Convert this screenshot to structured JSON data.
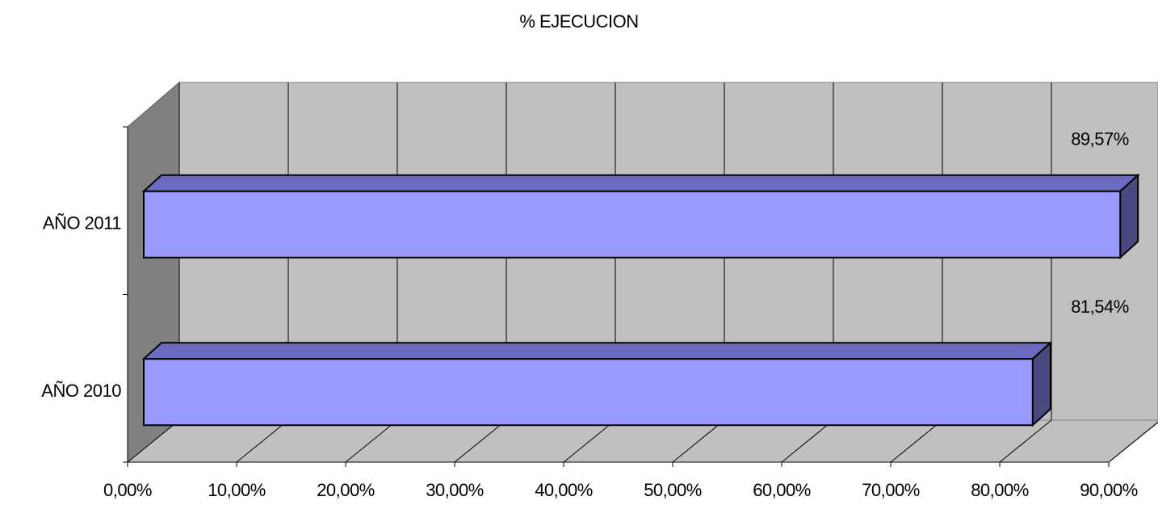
{
  "chart_data": {
    "type": "bar3d-horizontal",
    "title": "% EJECUCION",
    "categories": [
      "AÑO 2010",
      "AÑO 2011"
    ],
    "values": [
      81.54,
      89.57
    ],
    "value_labels": [
      "81,54%",
      "89,57%"
    ],
    "color": "#9999ff",
    "xlim": [
      0,
      90
    ],
    "xticks": [
      {
        "value": 0,
        "label": "0,00%"
      },
      {
        "value": 10,
        "label": "10,00%"
      },
      {
        "value": 20,
        "label": "20,00%"
      },
      {
        "value": 30,
        "label": "30,00%"
      },
      {
        "value": 40,
        "label": "40,00%"
      },
      {
        "value": 50,
        "label": "50,00%"
      },
      {
        "value": 60,
        "label": "60,00%"
      },
      {
        "value": 70,
        "label": "70,00%"
      },
      {
        "value": 80,
        "label": "80,00%"
      },
      {
        "value": 90,
        "label": "90,00%"
      }
    ],
    "grid": true
  }
}
